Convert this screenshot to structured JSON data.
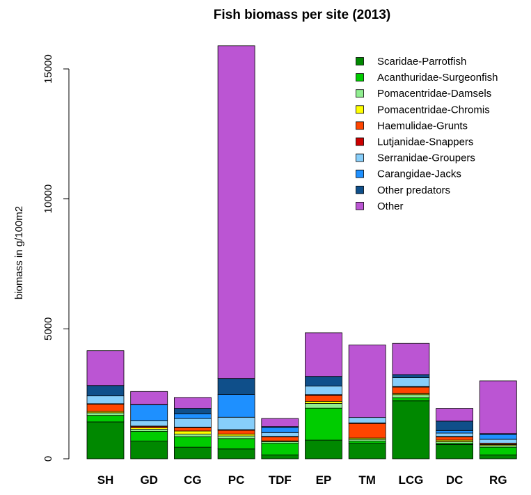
{
  "chart_data": {
    "type": "bar",
    "stacked": true,
    "title": "Fish biomass per site (2013)",
    "xlabel": "",
    "ylabel": "biomass in g/100m2",
    "ylim": [
      0,
      16000
    ],
    "yticks": [
      0,
      5000,
      10000,
      15000
    ],
    "categories": [
      "SH",
      "GD",
      "CG",
      "PC",
      "TDF",
      "EP",
      "TM",
      "LCG",
      "DC",
      "RG"
    ],
    "legend_position": "top-right",
    "grid": false,
    "series": [
      {
        "name": "Scaridae-Parrotfish",
        "color": "#008800",
        "values": [
          1420,
          680,
          450,
          380,
          150,
          720,
          600,
          2230,
          550,
          150
        ]
      },
      {
        "name": "Acanthuridae-Surgeonfish",
        "color": "#00cc00",
        "values": [
          250,
          380,
          400,
          400,
          450,
          1230,
          80,
          120,
          50,
          300
        ]
      },
      {
        "name": "Pomacentridae-Damsels",
        "color": "#90ee90",
        "values": [
          100,
          80,
          100,
          100,
          60,
          180,
          70,
          120,
          60,
          60
        ]
      },
      {
        "name": "Pomacentridae-Chromis",
        "color": "#ffff00",
        "values": [
          50,
          50,
          120,
          70,
          30,
          80,
          50,
          40,
          60,
          40
        ]
      },
      {
        "name": "Haemulidae-Grunts",
        "color": "#ff4500",
        "values": [
          280,
          60,
          130,
          150,
          150,
          230,
          560,
          250,
          120,
          40
        ]
      },
      {
        "name": "Lutjanidae-Snappers",
        "color": "#cc0000",
        "values": [
          20,
          10,
          20,
          20,
          20,
          30,
          20,
          20,
          20,
          10
        ]
      },
      {
        "name": "Serranidae-Groupers",
        "color": "#87cefa",
        "values": [
          300,
          200,
          330,
          480,
          150,
          330,
          210,
          340,
          130,
          150
        ]
      },
      {
        "name": "Carangidae-Jacks",
        "color": "#1e90ff",
        "values": [
          0,
          620,
          180,
          880,
          200,
          0,
          0,
          0,
          100,
          190
        ]
      },
      {
        "name": "Other predators",
        "color": "#0f4f8a",
        "values": [
          400,
          10,
          210,
          610,
          30,
          370,
          0,
          120,
          360,
          30
        ]
      },
      {
        "name": "Other",
        "color": "#bb55d3",
        "values": [
          1340,
          500,
          420,
          12800,
          310,
          1680,
          2790,
          1200,
          490,
          2030
        ]
      }
    ]
  }
}
